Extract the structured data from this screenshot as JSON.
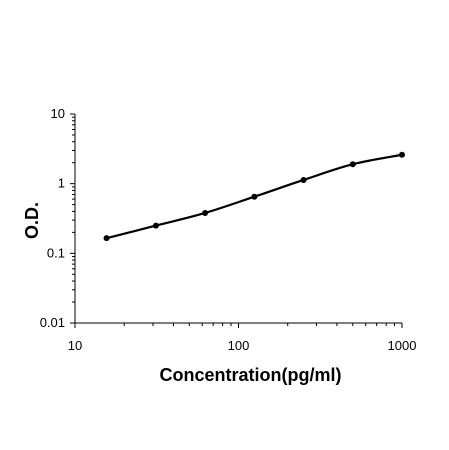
{
  "chart_data": {
    "type": "scatter",
    "title": "",
    "xlabel": "Concentration(pg/ml)",
    "ylabel": "O.D.",
    "x_scale": "log",
    "y_scale": "log",
    "xlim": [
      10,
      1000
    ],
    "ylim": [
      0.01,
      10
    ],
    "x_tick_labels": [
      "10",
      "100",
      "1000"
    ],
    "y_tick_labels": [
      "0.01",
      "0.1",
      "1",
      "10"
    ],
    "grid": false,
    "legend": "none",
    "series": [
      {
        "x": [
          15.6,
          31.25,
          62.5,
          125,
          250,
          500,
          1000
        ],
        "y": [
          0.165,
          0.25,
          0.38,
          0.65,
          1.13,
          1.9,
          2.6
        ]
      }
    ],
    "colors": {
      "line": "#000000",
      "marker": "#000000",
      "axis": "#000000"
    }
  }
}
